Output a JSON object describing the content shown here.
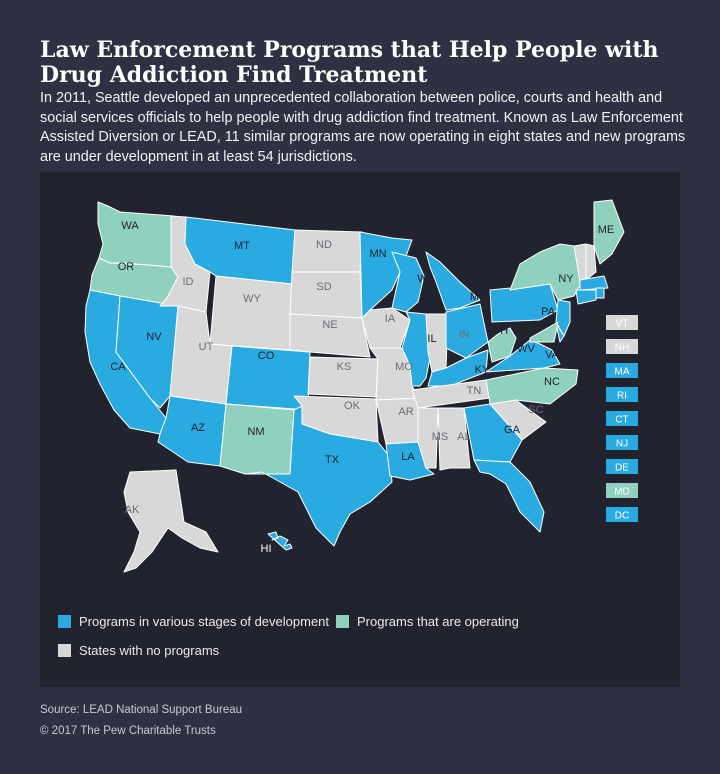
{
  "title": "Law Enforcement Programs that Help People with Drug Addiction Find Treatment",
  "intro": "In 2011, Seattle developed an unprecedented collaboration between police, courts and health and social services officials to help people with drug addiction find treatment. Known as Law Enforcement Assisted Diversion or LEAD, 11 similar programs are now operating in eight states and new programs are under development in at least 54 jurisdictions.",
  "colors": {
    "development": "#29abe2",
    "operating": "#8fd1be",
    "none": "#d8d8d8",
    "panel": "#21232f",
    "background": "#2d3142"
  },
  "legend": {
    "development": "Programs in various stages of development",
    "operating": "Programs that are operating",
    "none": "States with no programs"
  },
  "states": {
    "WA": "operating",
    "OR": "operating",
    "CA": "development",
    "NV": "development",
    "ID": "none",
    "MT": "development",
    "WY": "none",
    "UT": "none",
    "CO": "development",
    "AZ": "development",
    "NM": "operating",
    "ND": "none",
    "SD": "none",
    "NE": "none",
    "KS": "none",
    "OK": "none",
    "TX": "development",
    "MN": "development",
    "IA": "none",
    "MO": "none",
    "AR": "none",
    "LA": "development",
    "WI": "development",
    "IL": "development",
    "MI": "development",
    "IN": "none",
    "OH": "development",
    "KY": "development",
    "TN": "none",
    "MS": "none",
    "AL": "none",
    "GA": "development",
    "FL": "development",
    "SC": "none",
    "NC": "operating",
    "VA": "development",
    "WV": "operating",
    "PA": "development",
    "NY": "operating",
    "ME": "operating",
    "AK": "none",
    "HI": "development"
  },
  "small_states": [
    {
      "abbr": "VT",
      "status": "none"
    },
    {
      "abbr": "NH",
      "status": "none"
    },
    {
      "abbr": "MA",
      "status": "development"
    },
    {
      "abbr": "RI",
      "status": "development"
    },
    {
      "abbr": "CT",
      "status": "development"
    },
    {
      "abbr": "NJ",
      "status": "development"
    },
    {
      "abbr": "DE",
      "status": "development"
    },
    {
      "abbr": "MD",
      "status": "operating"
    },
    {
      "abbr": "DC",
      "status": "development"
    }
  ],
  "source": "Source: LEAD National Support Bureau",
  "copyright": "© 2017 The Pew Charitable Trusts"
}
